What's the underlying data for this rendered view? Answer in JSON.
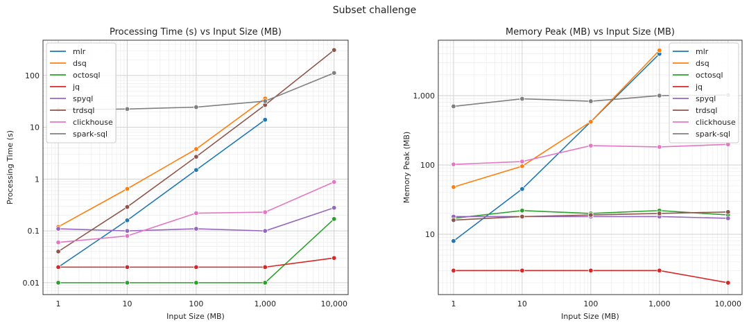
{
  "suptitle": "Subset challenge",
  "chart_data": [
    {
      "type": "line",
      "title": "Processing Time (s) vs Input Size (MB)",
      "xlabel": "Input Size (MB)",
      "ylabel": "Processing Time (s)",
      "xscale": "log",
      "yscale": "log",
      "xlim": [
        0.6,
        16000
      ],
      "ylim": [
        0.0059,
        480
      ],
      "grid": true,
      "legend": "top-left",
      "x": [
        1,
        10,
        100,
        1000,
        10000
      ],
      "xticks": [
        "1",
        "10",
        "100",
        "1,000",
        "10,000"
      ],
      "yticks": [
        "0.01",
        "0.1",
        "1",
        "10",
        "100"
      ],
      "ytick_values": [
        0.01,
        0.1,
        1,
        10,
        100
      ],
      "series": [
        {
          "name": "mlr",
          "color": "#1f77b4",
          "values": [
            0.02,
            0.16,
            1.5,
            14,
            null
          ]
        },
        {
          "name": "dsq",
          "color": "#ff7f0e",
          "values": [
            0.12,
            0.65,
            3.8,
            36,
            null
          ]
        },
        {
          "name": "octosql",
          "color": "#2ca02c",
          "values": [
            0.01,
            0.01,
            0.01,
            0.01,
            0.17
          ]
        },
        {
          "name": "jq",
          "color": "#d62728",
          "values": [
            0.02,
            0.02,
            0.02,
            0.02,
            0.03
          ]
        },
        {
          "name": "spyql",
          "color": "#9467bd",
          "values": [
            0.11,
            0.1,
            0.11,
            0.1,
            0.28
          ]
        },
        {
          "name": "trdsql",
          "color": "#8c564b",
          "values": [
            0.04,
            0.29,
            2.7,
            27,
            310
          ]
        },
        {
          "name": "clickhouse",
          "color": "#e377c2",
          "values": [
            0.06,
            0.08,
            0.22,
            0.23,
            0.88
          ]
        },
        {
          "name": "spark-sql",
          "color": "#7f7f7f",
          "values": [
            22,
            22.5,
            24.5,
            32,
            112
          ]
        }
      ]
    },
    {
      "type": "line",
      "title": "Memory Peak (MB) vs Input Size (MB)",
      "xlabel": "Input Size (MB)",
      "ylabel": "Memory Peak (MB)",
      "xscale": "log",
      "yscale": "log",
      "xlim": [
        0.6,
        16000
      ],
      "ylim": [
        1.35,
        6300
      ],
      "grid": true,
      "legend": "top-right",
      "x": [
        1,
        10,
        100,
        1000,
        10000
      ],
      "xticks": [
        "1",
        "10",
        "100",
        "1,000",
        "10,000"
      ],
      "yticks": [
        "10",
        "100",
        "1,000"
      ],
      "ytick_values": [
        10,
        100,
        1000
      ],
      "series": [
        {
          "name": "mlr",
          "color": "#1f77b4",
          "values": [
            8,
            45,
            420,
            4000,
            null
          ]
        },
        {
          "name": "dsq",
          "color": "#ff7f0e",
          "values": [
            48,
            96,
            420,
            4500,
            null
          ]
        },
        {
          "name": "octosql",
          "color": "#2ca02c",
          "values": [
            17,
            22,
            20,
            22,
            19
          ]
        },
        {
          "name": "jq",
          "color": "#d62728",
          "values": [
            3,
            3,
            3,
            3,
            2
          ]
        },
        {
          "name": "spyql",
          "color": "#9467bd",
          "values": [
            18,
            18,
            18,
            18,
            17
          ]
        },
        {
          "name": "trdsql",
          "color": "#8c564b",
          "values": [
            16,
            18,
            19,
            20,
            21
          ]
        },
        {
          "name": "clickhouse",
          "color": "#e377c2",
          "values": [
            102,
            112,
            190,
            182,
            198
          ]
        },
        {
          "name": "spark-sql",
          "color": "#7f7f7f",
          "values": [
            700,
            900,
            830,
            1000,
            1020
          ]
        }
      ]
    }
  ]
}
